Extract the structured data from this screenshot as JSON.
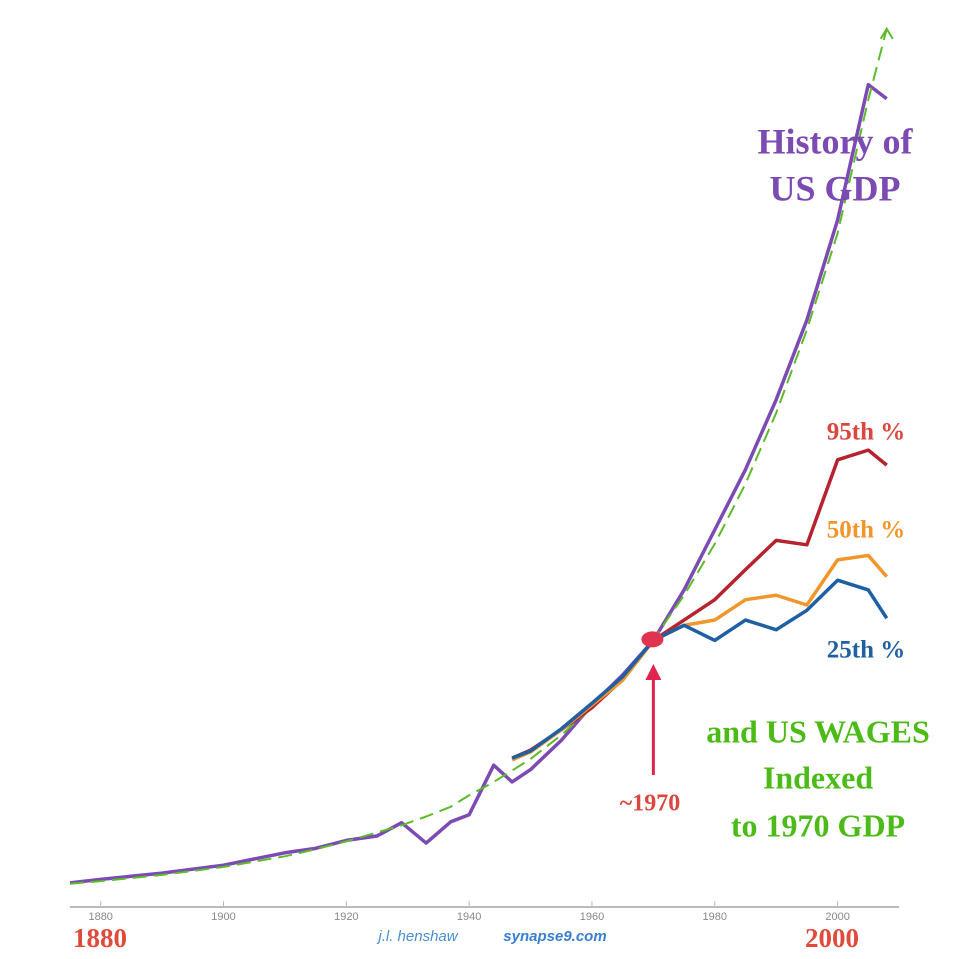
{
  "chart_data": {
    "type": "line",
    "x": [
      1875,
      1880,
      1890,
      1900,
      1910,
      1915,
      1920,
      1925,
      1929,
      1933,
      1937,
      1940,
      1944,
      1947,
      1950,
      1955,
      1960,
      1965,
      1970,
      1975,
      1980,
      1985,
      1990,
      1995,
      2000,
      2005,
      2008
    ],
    "xlim": [
      1875,
      2010
    ],
    "xticks": [
      1880,
      1900,
      1920,
      1940,
      1960,
      1980,
      2000
    ],
    "ylim": [
      0,
      100
    ],
    "series": [
      {
        "color": "#7b4ab3",
        "values": [
          2.5,
          2.9,
          3.6,
          4.5,
          5.9,
          6.4,
          7.3,
          7.8,
          9.3,
          7.0,
          9.4,
          10.2,
          15.8,
          13.9,
          15.3,
          18.6,
          22.6,
          26.0,
          29.9,
          35.6,
          42.4,
          49.2,
          57.1,
          66.1,
          77.4,
          92.7,
          91.1
        ]
      },
      {
        "color": "#5dbb2a",
        "dashed": true,
        "values": [
          2.4,
          2.7,
          3.4,
          4.3,
          5.5,
          6.3,
          7.2,
          8.2,
          9.0,
          10.0,
          11.1,
          12.4,
          13.9,
          15.2,
          16.5,
          19.2,
          22.3,
          25.9,
          30,
          35,
          40.8,
          47.6,
          55.6,
          65,
          75.9,
          91,
          99
        ]
      },
      {
        "name": "95th %",
        "color": "#b5232e",
        "values": [
          null,
          null,
          null,
          null,
          null,
          null,
          null,
          null,
          null,
          null,
          null,
          null,
          null,
          16.6,
          17.5,
          19.8,
          22.3,
          25.5,
          29.9,
          32.2,
          34.5,
          37.9,
          41.2,
          40.7,
          50.3,
          51.4,
          49.7
        ]
      },
      {
        "name": "50th %",
        "color": "#f0962a",
        "values": [
          null,
          null,
          null,
          null,
          null,
          null,
          null,
          null,
          null,
          null,
          null,
          null,
          null,
          16.4,
          17.3,
          19.8,
          22.6,
          25.4,
          29.9,
          31.6,
          32.2,
          34.5,
          35.0,
          33.9,
          39.0,
          39.5,
          37.1
        ]
      },
      {
        "name": "25th %",
        "color": "#1f5fa3",
        "values": [
          null,
          null,
          null,
          null,
          null,
          null,
          null,
          null,
          null,
          null,
          null,
          null,
          null,
          16.6,
          17.4,
          19.9,
          22.8,
          25.8,
          29.9,
          31.6,
          29.9,
          32.2,
          31.1,
          33.3,
          36.7,
          35.6,
          32.4
        ]
      }
    ],
    "annotations": [
      "History of",
      "US GDP",
      "and US WAGES",
      "Indexed",
      "to 1970 GDP",
      "~1970",
      "1880",
      "2000",
      "j.l. henshaw",
      "synapse9.com"
    ]
  }
}
